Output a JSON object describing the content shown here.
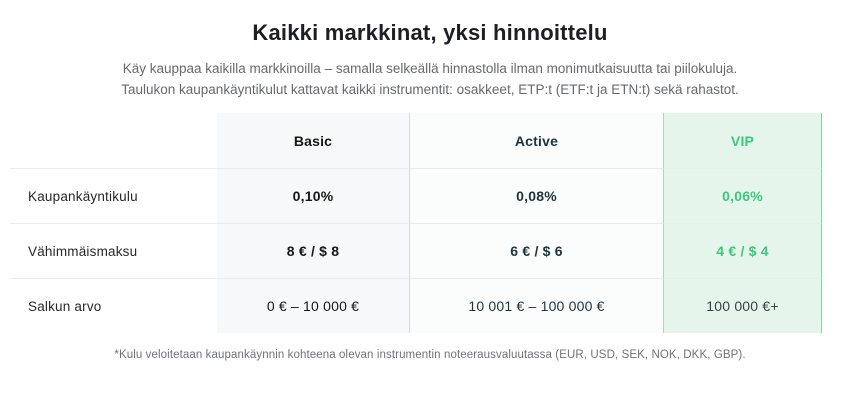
{
  "header": {
    "title": "Kaikki markkinat, yksi hinnoittelu",
    "subtitle": "Käy kauppaa kaikilla markkinoilla – samalla selkeällä hinnastolla ilman monimutkaisuutta tai piilokuluja. Taulukon kaupankäyntikulut kattavat kaikki instrumentit: osakkeet, ETP:t (ETF:t ja ETN:t) sekä rahastot."
  },
  "table": {
    "columns": [
      {
        "id": "basic",
        "label": "Basic"
      },
      {
        "id": "active",
        "label": "Active"
      },
      {
        "id": "vip",
        "label": "VIP"
      }
    ],
    "rows": [
      {
        "label": "Kaupankäyntikulu",
        "values": [
          "0,10%",
          "0,08%",
          "0,06%"
        ]
      },
      {
        "label": "Vähimmäismaksu",
        "values": [
          "8 € / $ 8",
          "6 € / $ 6",
          "4 € / $ 4"
        ]
      },
      {
        "label": "Salkun arvo",
        "values": [
          "0 € – 10 000 €",
          "10 001 € – 100 000 €",
          "100 000 €+"
        ]
      }
    ]
  },
  "footnote": "*Kulu veloitetaan kaupankäynnin kohteena olevan instrumentin noteerausvaluutassa (EUR, USD, SEK, NOK, DKK, GBP).",
  "colors": {
    "accent_green": "#3bc77c",
    "vip_background": "#e6f5ec",
    "vip_border_right": "#7fd8a4",
    "basic_background": "#f7f8fa",
    "active_background": "#fbfdfc",
    "row_border": "#e9ebee",
    "title_text": "#1e1e28",
    "subtitle_text": "#67696f",
    "active_text": "#1d3340"
  }
}
